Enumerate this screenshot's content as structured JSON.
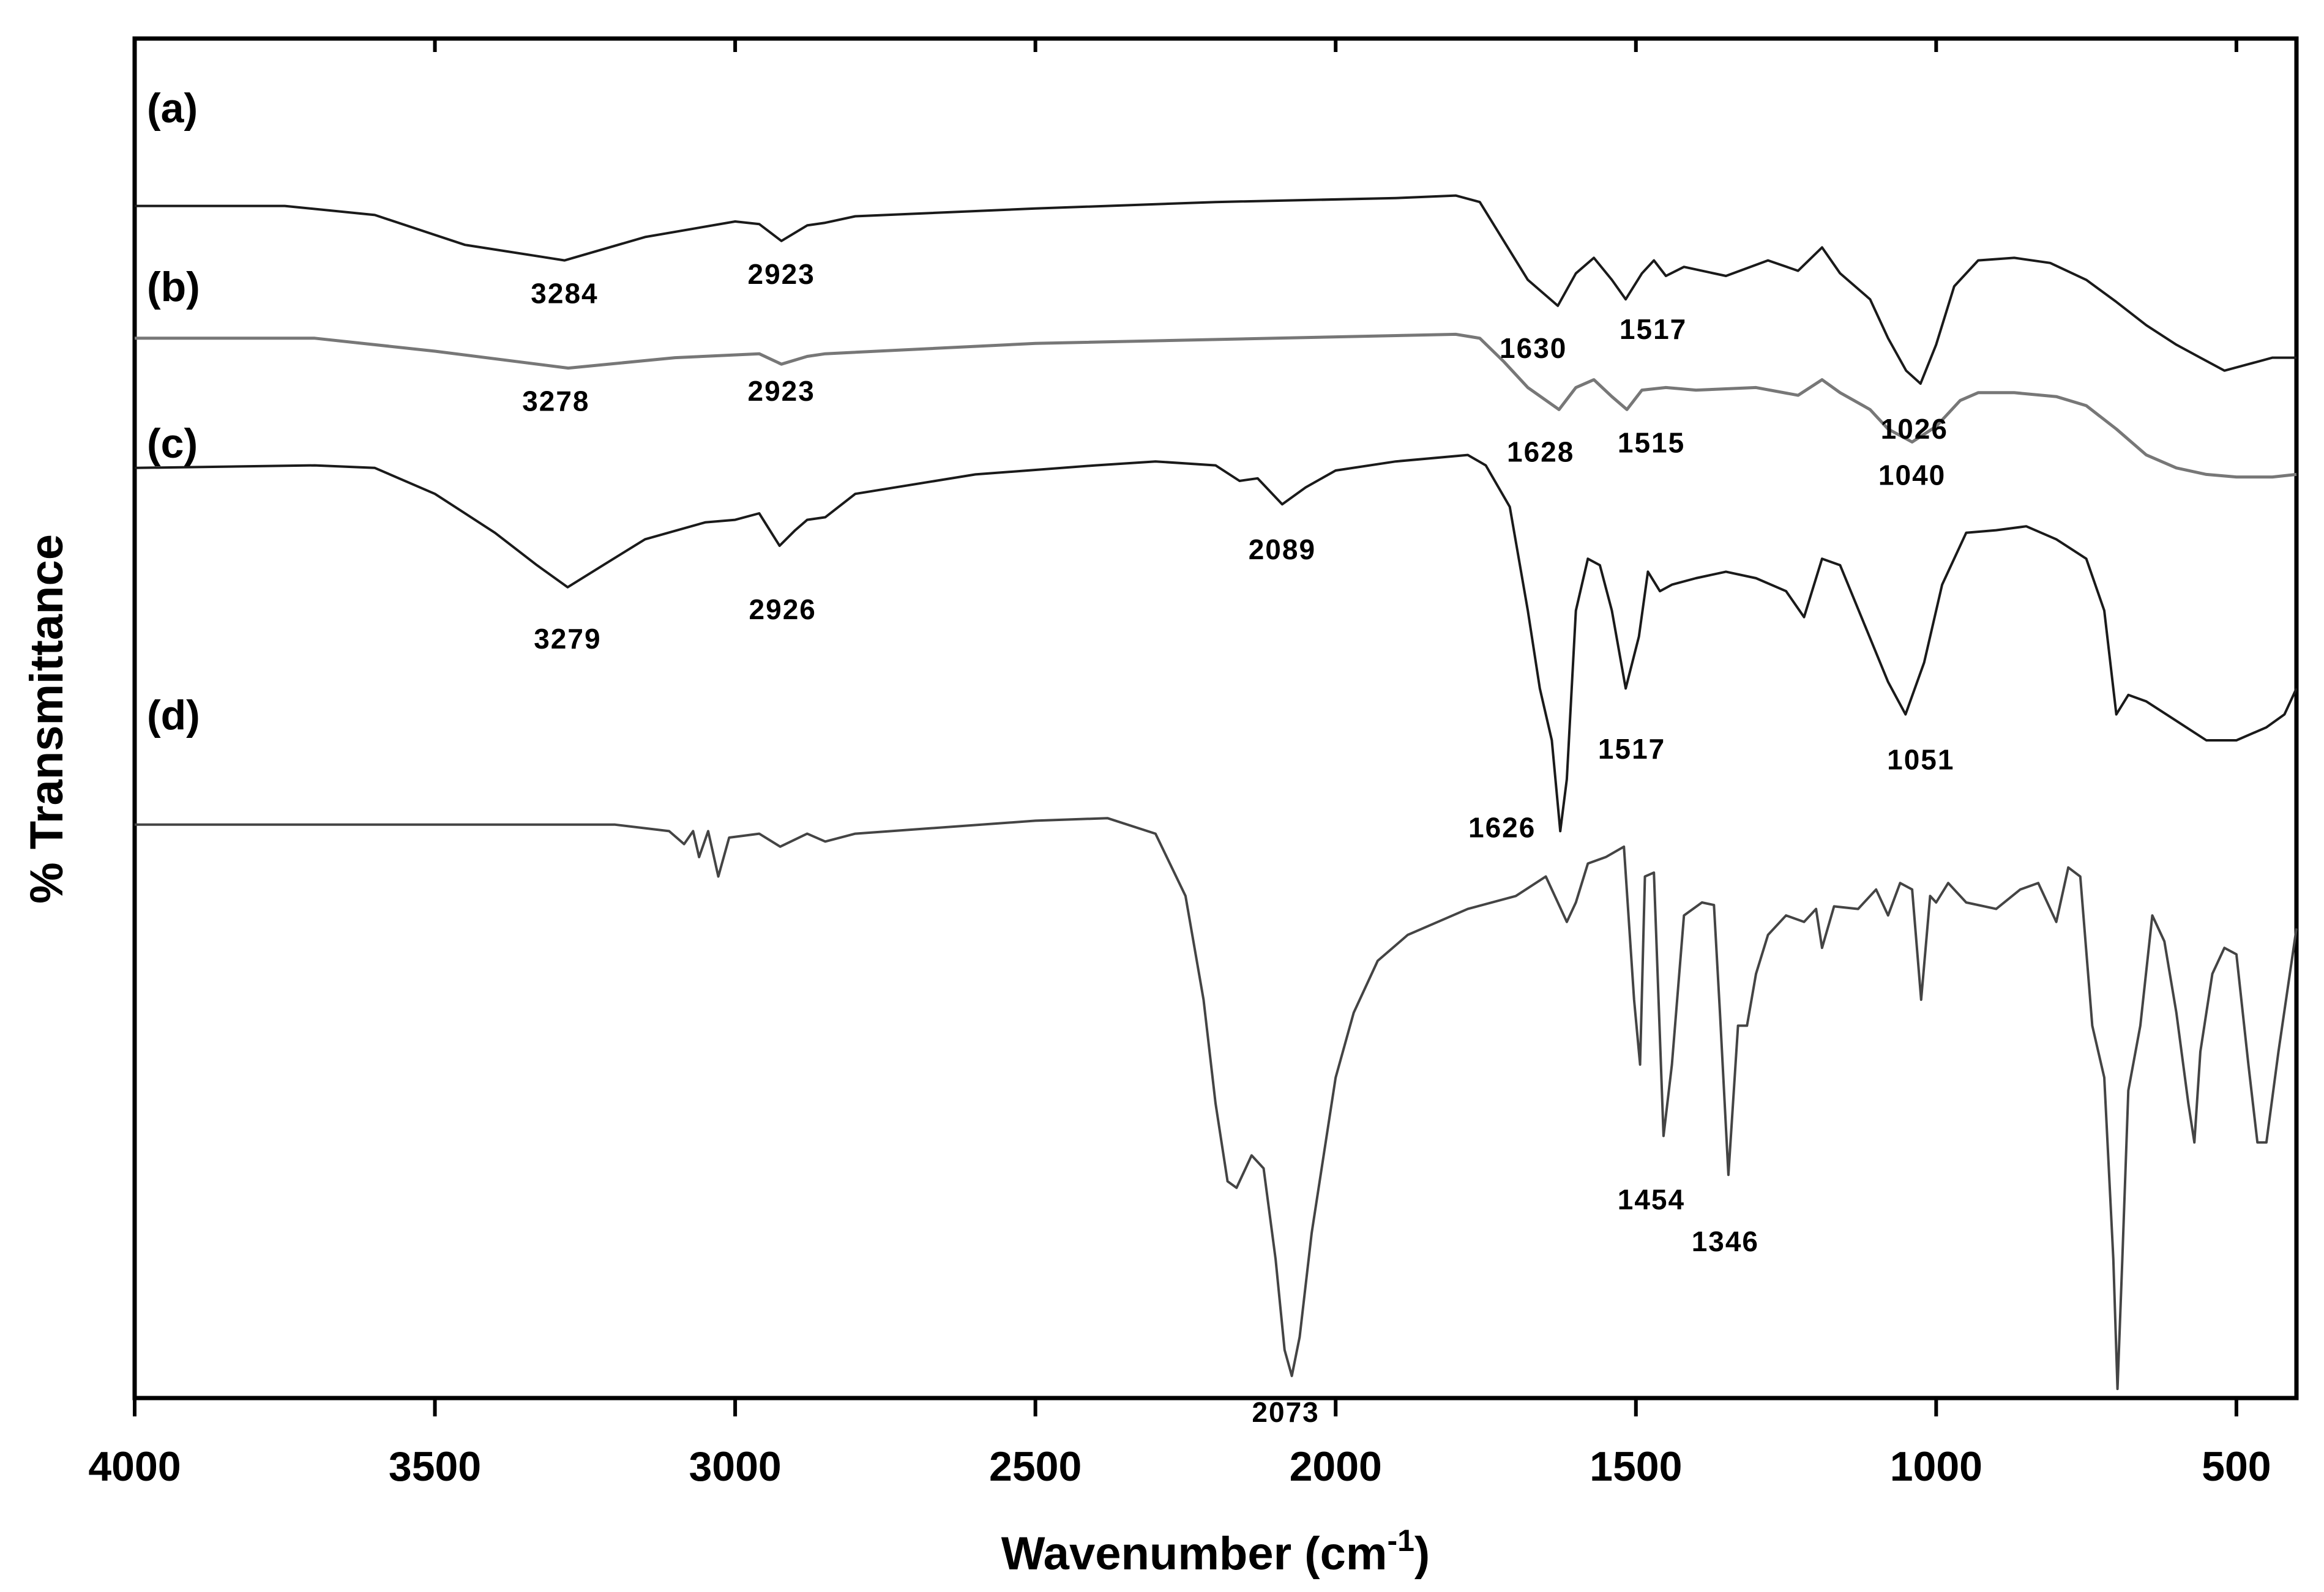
{
  "chart_data": {
    "type": "line",
    "title": "",
    "xlabel": "Wavenumber (cm",
    "xlabel_sup": "-1",
    "xlabel_suffix": ")",
    "ylabel": "% Transmittance",
    "xlim": [
      4000,
      400
    ],
    "x_reversed": true,
    "y_units": "arbitrary (stacked, offset traces)",
    "ylim": [
      0,
      10
    ],
    "grid": false,
    "x_ticks": [
      4000,
      3500,
      3000,
      2500,
      2000,
      1500,
      1000,
      500
    ],
    "x_tick_labels": [
      "4000",
      "3500",
      "3000",
      "2500",
      "2000",
      "1500",
      "1000",
      "500"
    ],
    "series": [
      {
        "name": "(a)",
        "color": "#1a1a1a",
        "points": [
          [
            4000,
            9.12
          ],
          [
            3750,
            9.12
          ],
          [
            3600,
            9.05
          ],
          [
            3450,
            8.82
          ],
          [
            3284,
            8.7
          ],
          [
            3150,
            8.88
          ],
          [
            3000,
            9.0
          ],
          [
            2960,
            8.98
          ],
          [
            2923,
            8.85
          ],
          [
            2880,
            8.97
          ],
          [
            2850,
            8.99
          ],
          [
            2800,
            9.04
          ],
          [
            2500,
            9.1
          ],
          [
            2200,
            9.15
          ],
          [
            1900,
            9.18
          ],
          [
            1800,
            9.2
          ],
          [
            1760,
            9.15
          ],
          [
            1720,
            8.85
          ],
          [
            1680,
            8.55
          ],
          [
            1630,
            8.35
          ],
          [
            1600,
            8.6
          ],
          [
            1570,
            8.72
          ],
          [
            1540,
            8.55
          ],
          [
            1517,
            8.4
          ],
          [
            1490,
            8.6
          ],
          [
            1470,
            8.7
          ],
          [
            1450,
            8.58
          ],
          [
            1420,
            8.65
          ],
          [
            1350,
            8.58
          ],
          [
            1280,
            8.7
          ],
          [
            1230,
            8.62
          ],
          [
            1190,
            8.8
          ],
          [
            1160,
            8.6
          ],
          [
            1110,
            8.4
          ],
          [
            1080,
            8.1
          ],
          [
            1050,
            7.85
          ],
          [
            1026,
            7.75
          ],
          [
            1000,
            8.05
          ],
          [
            970,
            8.5
          ],
          [
            930,
            8.7
          ],
          [
            870,
            8.72
          ],
          [
            810,
            8.68
          ],
          [
            750,
            8.55
          ],
          [
            700,
            8.38
          ],
          [
            650,
            8.2
          ],
          [
            600,
            8.05
          ],
          [
            560,
            7.95
          ],
          [
            520,
            7.85
          ],
          [
            480,
            7.9
          ],
          [
            440,
            7.95
          ],
          [
            400,
            7.95
          ]
        ]
      },
      {
        "name": "(b)",
        "color": "#777777",
        "points": [
          [
            4000,
            8.1
          ],
          [
            3700,
            8.1
          ],
          [
            3500,
            8.0
          ],
          [
            3278,
            7.87
          ],
          [
            3100,
            7.95
          ],
          [
            2960,
            7.98
          ],
          [
            2923,
            7.9
          ],
          [
            2880,
            7.96
          ],
          [
            2850,
            7.98
          ],
          [
            2500,
            8.06
          ],
          [
            2100,
            8.1
          ],
          [
            1800,
            8.13
          ],
          [
            1760,
            8.1
          ],
          [
            1720,
            7.92
          ],
          [
            1680,
            7.72
          ],
          [
            1628,
            7.55
          ],
          [
            1600,
            7.72
          ],
          [
            1570,
            7.78
          ],
          [
            1540,
            7.65
          ],
          [
            1515,
            7.55
          ],
          [
            1490,
            7.7
          ],
          [
            1450,
            7.72
          ],
          [
            1400,
            7.7
          ],
          [
            1300,
            7.72
          ],
          [
            1230,
            7.66
          ],
          [
            1190,
            7.78
          ],
          [
            1160,
            7.68
          ],
          [
            1110,
            7.55
          ],
          [
            1080,
            7.4
          ],
          [
            1040,
            7.3
          ],
          [
            1000,
            7.42
          ],
          [
            960,
            7.62
          ],
          [
            930,
            7.68
          ],
          [
            870,
            7.68
          ],
          [
            800,
            7.65
          ],
          [
            750,
            7.58
          ],
          [
            700,
            7.4
          ],
          [
            650,
            7.2
          ],
          [
            600,
            7.1
          ],
          [
            550,
            7.05
          ],
          [
            500,
            7.03
          ],
          [
            440,
            7.03
          ],
          [
            400,
            7.05
          ]
        ]
      },
      {
        "name": "(c)",
        "color": "#1a1a1a",
        "points": [
          [
            4000,
            7.1
          ],
          [
            3700,
            7.12
          ],
          [
            3600,
            7.1
          ],
          [
            3500,
            6.9
          ],
          [
            3400,
            6.6
          ],
          [
            3330,
            6.35
          ],
          [
            3279,
            6.18
          ],
          [
            3220,
            6.35
          ],
          [
            3150,
            6.55
          ],
          [
            3050,
            6.68
          ],
          [
            3000,
            6.7
          ],
          [
            2960,
            6.75
          ],
          [
            2926,
            6.5
          ],
          [
            2900,
            6.62
          ],
          [
            2880,
            6.7
          ],
          [
            2850,
            6.72
          ],
          [
            2800,
            6.9
          ],
          [
            2600,
            7.05
          ],
          [
            2400,
            7.12
          ],
          [
            2300,
            7.15
          ],
          [
            2200,
            7.12
          ],
          [
            2160,
            7.0
          ],
          [
            2130,
            7.02
          ],
          [
            2089,
            6.82
          ],
          [
            2050,
            6.95
          ],
          [
            2000,
            7.08
          ],
          [
            1900,
            7.15
          ],
          [
            1780,
            7.2
          ],
          [
            1750,
            7.12
          ],
          [
            1710,
            6.8
          ],
          [
            1680,
            6.0
          ],
          [
            1660,
            5.4
          ],
          [
            1640,
            5.0
          ],
          [
            1626,
            4.3
          ],
          [
            1615,
            4.7
          ],
          [
            1600,
            6.0
          ],
          [
            1580,
            6.4
          ],
          [
            1560,
            6.35
          ],
          [
            1540,
            6.0
          ],
          [
            1517,
            5.4
          ],
          [
            1495,
            5.8
          ],
          [
            1480,
            6.3
          ],
          [
            1460,
            6.15
          ],
          [
            1440,
            6.2
          ],
          [
            1400,
            6.25
          ],
          [
            1350,
            6.3
          ],
          [
            1300,
            6.25
          ],
          [
            1250,
            6.15
          ],
          [
            1220,
            5.95
          ],
          [
            1190,
            6.4
          ],
          [
            1160,
            6.35
          ],
          [
            1120,
            5.9
          ],
          [
            1080,
            5.45
          ],
          [
            1051,
            5.2
          ],
          [
            1020,
            5.6
          ],
          [
            990,
            6.2
          ],
          [
            950,
            6.6
          ],
          [
            900,
            6.62
          ],
          [
            850,
            6.65
          ],
          [
            800,
            6.55
          ],
          [
            750,
            6.4
          ],
          [
            720,
            6.0
          ],
          [
            700,
            5.2
          ],
          [
            680,
            5.35
          ],
          [
            650,
            5.3
          ],
          [
            600,
            5.15
          ],
          [
            550,
            5.0
          ],
          [
            500,
            5.0
          ],
          [
            450,
            5.1
          ],
          [
            420,
            5.2
          ],
          [
            400,
            5.4
          ]
        ]
      },
      {
        "name": "(d)",
        "color": "#444444",
        "points": [
          [
            4000,
            4.35
          ],
          [
            3200,
            4.35
          ],
          [
            3110,
            4.3
          ],
          [
            3085,
            4.2
          ],
          [
            3070,
            4.3
          ],
          [
            3060,
            4.1
          ],
          [
            3045,
            4.3
          ],
          [
            3028,
            3.95
          ],
          [
            3010,
            4.25
          ],
          [
            2960,
            4.28
          ],
          [
            2925,
            4.18
          ],
          [
            2880,
            4.28
          ],
          [
            2850,
            4.22
          ],
          [
            2800,
            4.28
          ],
          [
            2500,
            4.38
          ],
          [
            2380,
            4.4
          ],
          [
            2300,
            4.28
          ],
          [
            2250,
            3.8
          ],
          [
            2220,
            3.0
          ],
          [
            2200,
            2.2
          ],
          [
            2180,
            1.6
          ],
          [
            2165,
            1.55
          ],
          [
            2140,
            1.8
          ],
          [
            2120,
            1.7
          ],
          [
            2100,
            1.0
          ],
          [
            2085,
            0.3
          ],
          [
            2073,
            0.1
          ],
          [
            2060,
            0.4
          ],
          [
            2040,
            1.2
          ],
          [
            2020,
            1.8
          ],
          [
            2000,
            2.4
          ],
          [
            1970,
            2.9
          ],
          [
            1930,
            3.3
          ],
          [
            1880,
            3.5
          ],
          [
            1820,
            3.62
          ],
          [
            1780,
            3.7
          ],
          [
            1700,
            3.8
          ],
          [
            1650,
            3.95
          ],
          [
            1615,
            3.6
          ],
          [
            1600,
            3.75
          ],
          [
            1580,
            4.05
          ],
          [
            1550,
            4.1
          ],
          [
            1520,
            4.18
          ],
          [
            1503,
            3.0
          ],
          [
            1493,
            2.5
          ],
          [
            1485,
            3.95
          ],
          [
            1470,
            3.98
          ],
          [
            1454,
            1.95
          ],
          [
            1440,
            2.5
          ],
          [
            1420,
            3.65
          ],
          [
            1390,
            3.75
          ],
          [
            1370,
            3.73
          ],
          [
            1360,
            2.9
          ],
          [
            1346,
            1.65
          ],
          [
            1330,
            2.8
          ],
          [
            1315,
            2.8
          ],
          [
            1300,
            3.2
          ],
          [
            1280,
            3.5
          ],
          [
            1250,
            3.65
          ],
          [
            1220,
            3.6
          ],
          [
            1200,
            3.7
          ],
          [
            1190,
            3.4
          ],
          [
            1170,
            3.72
          ],
          [
            1130,
            3.7
          ],
          [
            1100,
            3.85
          ],
          [
            1080,
            3.65
          ],
          [
            1060,
            3.9
          ],
          [
            1040,
            3.85
          ],
          [
            1025,
            3.0
          ],
          [
            1010,
            3.8
          ],
          [
            1000,
            3.75
          ],
          [
            980,
            3.9
          ],
          [
            950,
            3.75
          ],
          [
            900,
            3.7
          ],
          [
            860,
            3.85
          ],
          [
            830,
            3.9
          ],
          [
            800,
            3.6
          ],
          [
            780,
            4.02
          ],
          [
            760,
            3.95
          ],
          [
            740,
            2.8
          ],
          [
            720,
            2.4
          ],
          [
            705,
            1.0
          ],
          [
            698,
            0.0
          ],
          [
            690,
            1.0
          ],
          [
            680,
            2.3
          ],
          [
            660,
            2.8
          ],
          [
            640,
            3.65
          ],
          [
            620,
            3.45
          ],
          [
            600,
            2.9
          ],
          [
            580,
            2.2
          ],
          [
            570,
            1.9
          ],
          [
            560,
            2.6
          ],
          [
            540,
            3.2
          ],
          [
            520,
            3.4
          ],
          [
            500,
            3.35
          ],
          [
            480,
            2.5
          ],
          [
            465,
            1.9
          ],
          [
            450,
            1.9
          ],
          [
            430,
            2.6
          ],
          [
            400,
            3.55
          ]
        ]
      }
    ],
    "annotations": [
      {
        "text": "3284",
        "x": 3284,
        "y": 8.7,
        "series": "(a)"
      },
      {
        "text": "2923",
        "x": 2923,
        "y": 8.85,
        "series": "(a)"
      },
      {
        "text": "1630",
        "x": 1630,
        "y": 8.35,
        "series": "(a)"
      },
      {
        "text": "1517",
        "x": 1517,
        "y": 8.4,
        "series": "(a)"
      },
      {
        "text": "1026",
        "x": 1026,
        "y": 7.75,
        "series": "(a)"
      },
      {
        "text": "3278",
        "x": 3278,
        "y": 7.87,
        "series": "(b)"
      },
      {
        "text": "2923",
        "x": 2923,
        "y": 7.9,
        "series": "(b)"
      },
      {
        "text": "1628",
        "x": 1628,
        "y": 7.55,
        "series": "(b)"
      },
      {
        "text": "1515",
        "x": 1515,
        "y": 7.55,
        "series": "(b)"
      },
      {
        "text": "1040",
        "x": 1040,
        "y": 7.3,
        "series": "(b)"
      },
      {
        "text": "3279",
        "x": 3279,
        "y": 6.18,
        "series": "(c)"
      },
      {
        "text": "2926",
        "x": 2926,
        "y": 6.5,
        "series": "(c)"
      },
      {
        "text": "2089",
        "x": 2089,
        "y": 6.82,
        "series": "(c)"
      },
      {
        "text": "1626",
        "x": 1626,
        "y": 4.3,
        "series": "(c)"
      },
      {
        "text": "1517",
        "x": 1517,
        "y": 5.4,
        "series": "(c)"
      },
      {
        "text": "1051",
        "x": 1051,
        "y": 5.2,
        "series": "(c)"
      },
      {
        "text": "1454",
        "x": 1454,
        "y": 1.95,
        "series": "(d)"
      },
      {
        "text": "1346",
        "x": 1346,
        "y": 1.65,
        "series": "(d)"
      },
      {
        "text": "2073",
        "x": 2073,
        "y": 0.1,
        "series": "(d)"
      }
    ]
  }
}
